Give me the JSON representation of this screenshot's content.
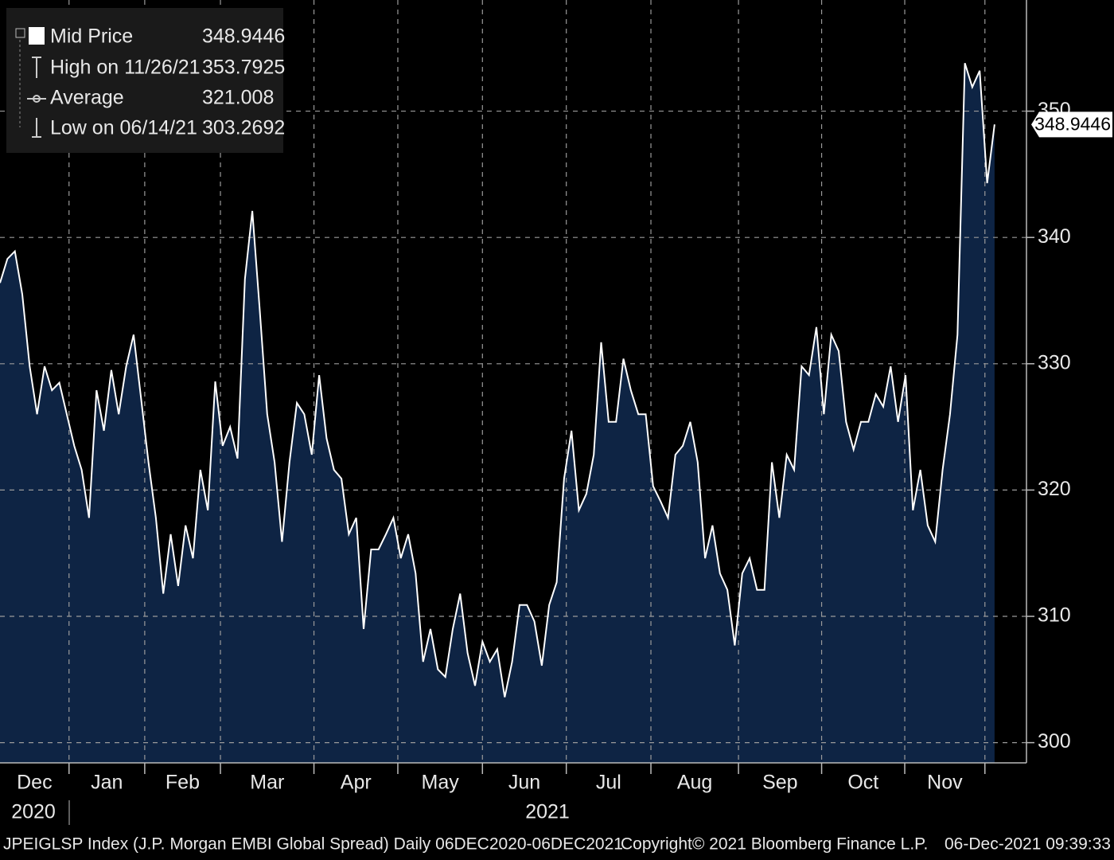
{
  "chart_data": {
    "type": "area",
    "values": [
      336.4,
      338.3,
      338.9,
      335.5,
      329.8,
      326,
      329.8,
      327.9,
      328.5,
      326,
      323.5,
      321.6,
      317.8,
      327.9,
      324.7,
      329.5,
      326,
      329.8,
      332.3,
      327.3,
      322.2,
      317.8,
      311.8,
      316.5,
      312.4,
      317.2,
      314.6,
      321.6,
      318.4,
      328.6,
      323.5,
      325,
      322.5,
      336.7,
      342.1,
      334.2,
      326,
      322.2,
      315.9,
      322.2,
      326.9,
      326,
      322.8,
      329.1,
      324.1,
      321.6,
      320.9,
      316.5,
      317.8,
      309,
      315.3,
      315.3,
      316.5,
      317.8,
      314.6,
      316.5,
      313.4,
      306.4,
      309,
      305.8,
      305.2,
      309,
      311.8,
      307.1,
      304.5,
      308,
      306.4,
      307.4,
      303.6,
      306.4,
      310.9,
      310.9,
      309.6,
      306.1,
      310.9,
      312.7,
      320.9,
      324.7,
      318.4,
      319.7,
      322.8,
      331.7,
      325.4,
      325.4,
      330.4,
      327.9,
      326,
      326,
      320.3,
      319.1,
      317.8,
      322.8,
      323.5,
      325.4,
      322.2,
      314.6,
      317.2,
      313.4,
      312.1,
      307.7,
      313.4,
      314.6,
      312.1,
      312.1,
      322.2,
      317.8,
      322.8,
      321.6,
      329.8,
      329.1,
      332.9,
      326,
      332.3,
      331,
      325.4,
      323.2,
      325.4,
      325.4,
      327.6,
      326.6,
      329.8,
      325.4,
      329.1,
      318.4,
      321.6,
      317.2,
      315.9,
      321.6,
      326,
      332.3,
      353.8,
      351.9,
      353.2,
      344.3,
      348.9446
    ],
    "color": "#0e2444",
    "line_color": "#ffffff",
    "ylim": [
      298.4,
      358.8
    ],
    "yticks": [
      300,
      310,
      320,
      330,
      340,
      350
    ],
    "xlim": [
      0,
      138.3
    ],
    "xticks": [
      9.3,
      19.5,
      29.7,
      42.3,
      53.6,
      65,
      76.3,
      87.7,
      99.5,
      110.7,
      121.9,
      132.7
    ],
    "months": [
      "Dec",
      "Jan",
      "Feb",
      "Mar",
      "Apr",
      "May",
      "Jun",
      "Jul",
      "Aug",
      "Sep",
      "Oct",
      "Nov"
    ],
    "years": [
      "2020",
      "2021"
    ],
    "grid": true,
    "last_value": 348.9446,
    "legend": [
      {
        "label": "Mid Price",
        "value": 348.9446
      },
      {
        "label": "High on 11/26/21",
        "value": 353.7925
      },
      {
        "label": "Average",
        "value": 321.008
      },
      {
        "label": "Low on 06/14/21",
        "value": 303.2692
      }
    ],
    "footer": {
      "source": "JPEIGLSP Index (J.P. Morgan EMBI Global Spread)  Daily 06DEC2020-06DEC2021",
      "copyright": "Copyright© 2021 Bloomberg Finance L.P.",
      "timestamp": "06-Dec-2021 09:39:33"
    }
  }
}
